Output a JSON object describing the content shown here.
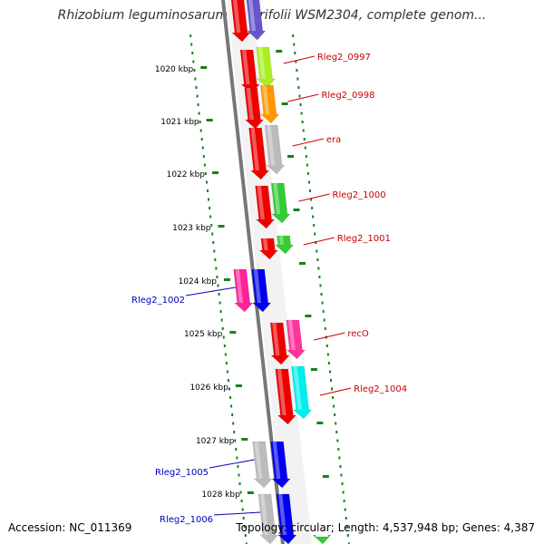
{
  "header": {
    "title": "Rhizobium leguminosarum bv. trifolii WSM2304, complete genom..."
  },
  "footer": {
    "accession": "Accession: NC_011369",
    "summary": "Topology: circular; Length: 4,537,948 bp; Genes: 4,387"
  },
  "ruler": {
    "ticks": [
      "1020 kbp",
      "1021 kbp",
      "1022 kbp",
      "1023 kbp",
      "1024 kbp",
      "1025 kbp",
      "1026 kbp",
      "1027 kbp",
      "1028 kbp"
    ]
  },
  "colors": {
    "backbone": "#777777",
    "ruler_dots": "#1a7f1a",
    "forward_label": "#cc0000",
    "reverse_label": "#0000bb"
  },
  "genes": [
    {
      "label": "Rleg2_0997",
      "strand": "forward",
      "color": "#aaee22"
    },
    {
      "label": "Rleg2_0998",
      "strand": "forward",
      "color": "#ff9900"
    },
    {
      "label": "era",
      "strand": "forward",
      "color": "#bbbbbb"
    },
    {
      "label": "Rleg2_1000",
      "strand": "forward",
      "color": "#33cc33"
    },
    {
      "label": "Rleg2_1001",
      "strand": "forward",
      "color": "#33cc33"
    },
    {
      "label": "Rleg2_1002",
      "strand": "reverse",
      "color": "#0000ee"
    },
    {
      "label": "recO",
      "strand": "forward",
      "color": "#ff3399"
    },
    {
      "label": "Rleg2_1004",
      "strand": "forward",
      "color": "#00eeee"
    },
    {
      "label": "Rleg2_1005",
      "strand": "reverse",
      "color": "#0000ee"
    },
    {
      "label": "Rleg2_1006",
      "strand": "reverse",
      "color": "#0000ee"
    }
  ]
}
